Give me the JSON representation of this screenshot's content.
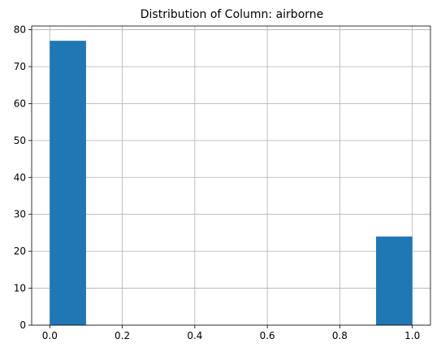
{
  "chart_data": {
    "type": "bar",
    "title": "Distribution of Column: airborne",
    "xlabel": "",
    "ylabel": "",
    "bins": [
      {
        "x_start": 0.0,
        "x_end": 0.1,
        "count": 77
      },
      {
        "x_start": 0.1,
        "x_end": 0.2,
        "count": 0
      },
      {
        "x_start": 0.2,
        "x_end": 0.3,
        "count": 0
      },
      {
        "x_start": 0.3,
        "x_end": 0.4,
        "count": 0
      },
      {
        "x_start": 0.4,
        "x_end": 0.5,
        "count": 0
      },
      {
        "x_start": 0.5,
        "x_end": 0.6,
        "count": 0
      },
      {
        "x_start": 0.6,
        "x_end": 0.7,
        "count": 0
      },
      {
        "x_start": 0.7,
        "x_end": 0.8,
        "count": 0
      },
      {
        "x_start": 0.8,
        "x_end": 0.9,
        "count": 0
      },
      {
        "x_start": 0.9,
        "x_end": 1.0,
        "count": 24
      }
    ],
    "xlim": [
      -0.05,
      1.05
    ],
    "ylim": [
      0,
      81
    ],
    "x_ticks": [
      0.0,
      0.2,
      0.4,
      0.6,
      0.8,
      1.0
    ],
    "x_tick_labels": [
      "0.0",
      "0.2",
      "0.4",
      "0.6",
      "0.8",
      "1.0"
    ],
    "y_ticks": [
      0,
      10,
      20,
      30,
      40,
      50,
      60,
      70,
      80
    ],
    "y_tick_labels": [
      "0",
      "10",
      "20",
      "30",
      "40",
      "50",
      "60",
      "70",
      "80"
    ],
    "grid": true,
    "bar_color": "#1f77b4",
    "grid_color": "#b0b0b0"
  }
}
